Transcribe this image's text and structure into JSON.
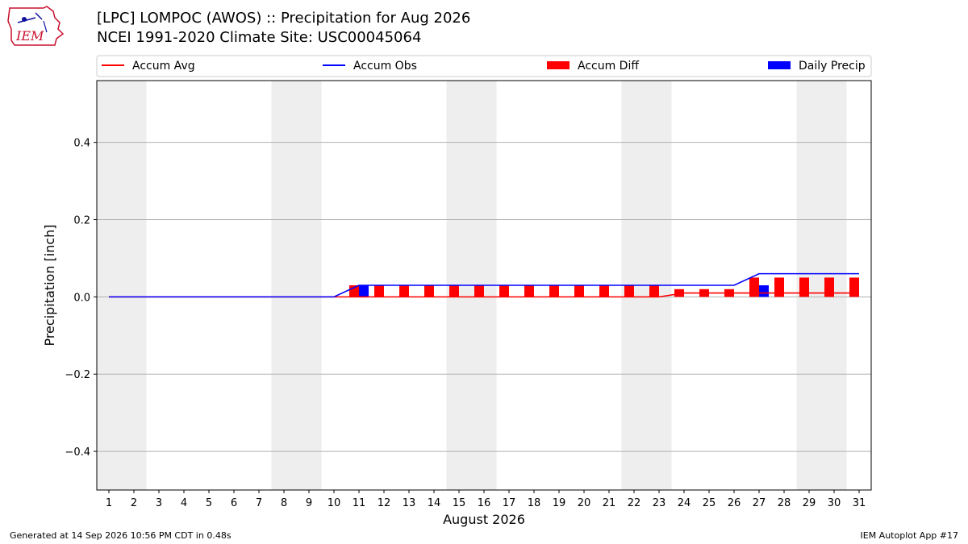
{
  "header": {
    "title_line1": "[LPC] LOMPOC (AWOS) :: Precipitation for Aug 2026",
    "title_line2": "NCEI 1991-2020 Climate Site: USC00045064",
    "logo_text": "IEM"
  },
  "footer": {
    "generated": "Generated at 14 Sep 2026 10:56 PM CDT in 0.48s",
    "app": "IEM Autoplot App #17"
  },
  "colors": {
    "accum_avg": "#ff0000",
    "accum_obs": "#0000ff",
    "accum_diff": "#ff0000",
    "daily_precip": "#0000ff",
    "weekend_shade": "#eeeeee",
    "grid": "#b0b0b0"
  },
  "chart_data": {
    "type": "bar",
    "xlabel": "August 2026",
    "ylabel": "Precipitation [inch]",
    "ylim": [
      -0.5,
      0.56
    ],
    "yticks": [
      -0.4,
      -0.2,
      0.0,
      0.2,
      0.4
    ],
    "ytick_labels": [
      "−0.4",
      "−0.2",
      "0.0",
      "0.2",
      "0.4"
    ],
    "grid": true,
    "legend_position": "top",
    "legend": [
      "Accum Avg",
      "Accum Obs",
      "Accum Diff",
      "Daily Precip"
    ],
    "days": [
      1,
      2,
      3,
      4,
      5,
      6,
      7,
      8,
      9,
      10,
      11,
      12,
      13,
      14,
      15,
      16,
      17,
      18,
      19,
      20,
      21,
      22,
      23,
      24,
      25,
      26,
      27,
      28,
      29,
      30,
      31
    ],
    "shaded_days": [
      [
        1,
        2
      ],
      [
        8,
        9
      ],
      [
        15,
        16
      ],
      [
        22,
        23
      ],
      [
        29,
        30
      ]
    ],
    "series": [
      {
        "name": "Accum Avg",
        "kind": "line",
        "values": [
          0,
          0,
          0,
          0,
          0,
          0,
          0,
          0,
          0,
          0,
          0,
          0,
          0,
          0,
          0,
          0,
          0,
          0,
          0,
          0,
          0,
          0,
          0,
          0.01,
          0.01,
          0.01,
          0.01,
          0.01,
          0.01,
          0.01,
          0.01
        ]
      },
      {
        "name": "Accum Obs",
        "kind": "line",
        "values": [
          0,
          0,
          0,
          0,
          0,
          0,
          0,
          0,
          0,
          0,
          0.03,
          0.03,
          0.03,
          0.03,
          0.03,
          0.03,
          0.03,
          0.03,
          0.03,
          0.03,
          0.03,
          0.03,
          0.03,
          0.03,
          0.03,
          0.03,
          0.06,
          0.06,
          0.06,
          0.06,
          0.06
        ]
      },
      {
        "name": "Accum Diff",
        "kind": "bar",
        "values": [
          0,
          0,
          0,
          0,
          0,
          0,
          0,
          0,
          0,
          0,
          0.03,
          0.03,
          0.03,
          0.03,
          0.03,
          0.03,
          0.03,
          0.03,
          0.03,
          0.03,
          0.03,
          0.03,
          0.03,
          0.02,
          0.02,
          0.02,
          0.05,
          0.05,
          0.05,
          0.05,
          0.05
        ]
      },
      {
        "name": "Daily Precip",
        "kind": "bar",
        "values": [
          0,
          0,
          0,
          0,
          0,
          0,
          0,
          0,
          0,
          0,
          0.03,
          0,
          0,
          0,
          0,
          0,
          0,
          0,
          0,
          0,
          0,
          0,
          0,
          0,
          0,
          0,
          0.03,
          0,
          0,
          0,
          0
        ]
      }
    ]
  }
}
